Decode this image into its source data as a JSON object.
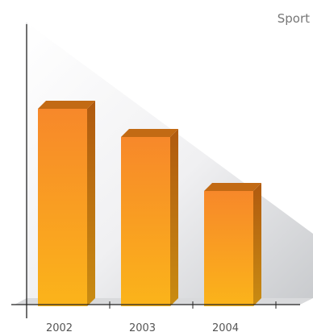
{
  "chart_data": {
    "type": "bar",
    "title": "Sport",
    "categories": [
      "2002",
      "2003",
      "2004"
    ],
    "values": [
      245,
      210,
      143
    ],
    "ylim": [
      0,
      330
    ],
    "grid": false,
    "legend": "none",
    "colors": {
      "bar_top": "#f7882a",
      "bar_bottom": "#fbb41a",
      "bar_side_top": "#b05a10",
      "bar_side_bottom": "#c98c12",
      "bar_cap": "#c26a14",
      "axis": "#222222"
    }
  }
}
